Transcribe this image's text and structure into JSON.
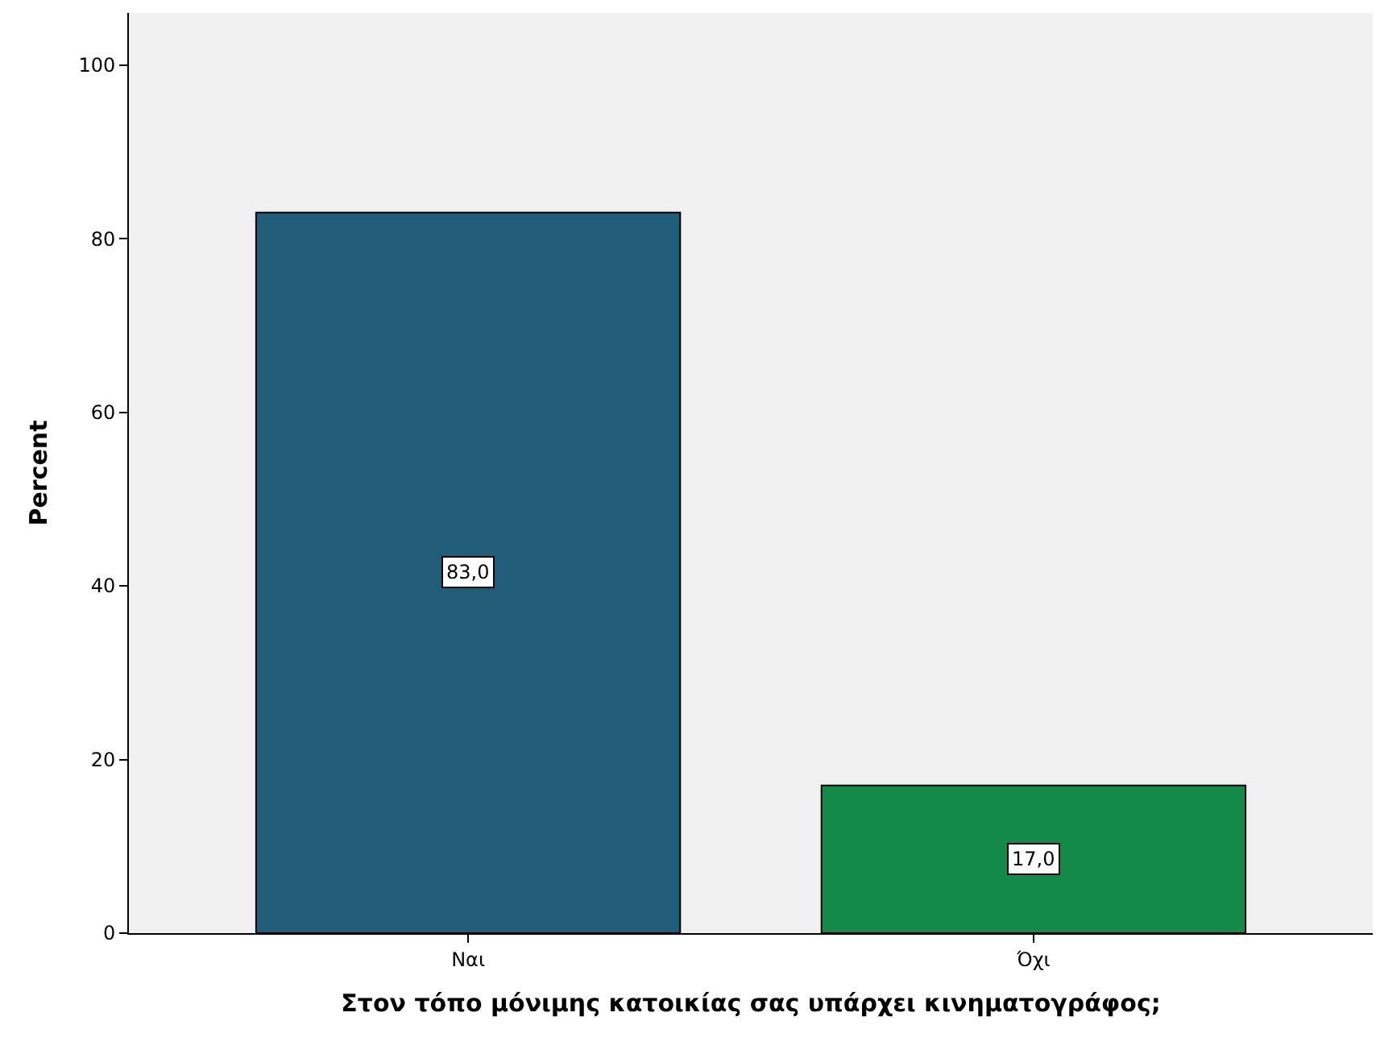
{
  "chart_data": {
    "type": "bar",
    "xlabel": "Στον τόπο μόνιμης κατοικίας σας υπάρχει κινηματογράφος;",
    "ylabel": "Percent",
    "categories": [
      "Ναι",
      "Όχι"
    ],
    "values": [
      83.0,
      17.0
    ],
    "colors": [
      "#1f5d78",
      "#138a48"
    ],
    "value_labels": [
      "83,0",
      "17,0"
    ],
    "ylim": [
      0,
      106
    ],
    "yticks": [
      0,
      20,
      40,
      60,
      80,
      100
    ],
    "grid": false
  }
}
